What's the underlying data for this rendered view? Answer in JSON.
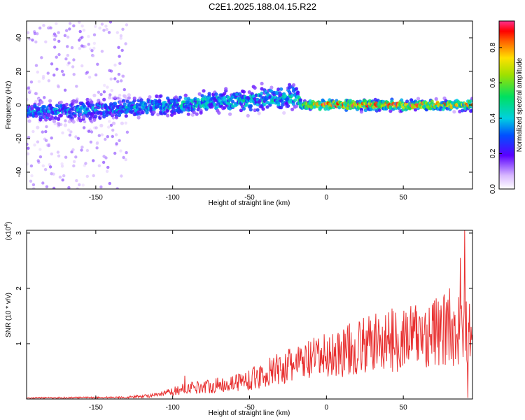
{
  "title": "C2E1.2025.188.04.15.R22",
  "colors": {
    "snr_line": "#e83030",
    "frame": "#000000"
  },
  "chart_data": [
    {
      "type": "heatmap",
      "xlabel": "Height of straight line (km)",
      "ylabel": "Frequency (Hz)",
      "xlim": [
        -195,
        95
      ],
      "ylim": [
        -50,
        50
      ],
      "x_ticks": [
        -150,
        -100,
        -50,
        0,
        50
      ],
      "y_ticks": [
        -40,
        -20,
        0,
        20,
        40
      ],
      "colorbar": {
        "label": "Normalized spectral amplitude",
        "range": [
          0,
          0.95
        ],
        "ticks": [
          0.0,
          0.2,
          0.4,
          0.6,
          0.8
        ],
        "colormap": "rainbow"
      },
      "ridge": [
        {
          "x": -190,
          "center_hz": -4,
          "spread_hz": 4,
          "amplitude": 0.3
        },
        {
          "x": -150,
          "center_hz": -3,
          "spread_hz": 4,
          "amplitude": 0.3
        },
        {
          "x": -100,
          "center_hz": 0,
          "spread_hz": 4,
          "amplitude": 0.35
        },
        {
          "x": -50,
          "center_hz": 3,
          "spread_hz": 5,
          "amplitude": 0.35
        },
        {
          "x": -20,
          "center_hz": 5,
          "spread_hz": 5,
          "amplitude": 0.35
        },
        {
          "x": -15,
          "center_hz": 0,
          "spread_hz": 2,
          "amplitude": 0.5
        },
        {
          "x": 0,
          "center_hz": 0,
          "spread_hz": 2,
          "amplitude": 0.7
        },
        {
          "x": 50,
          "center_hz": 0,
          "spread_hz": 2,
          "amplitude": 0.7
        },
        {
          "x": 92,
          "center_hz": 0,
          "spread_hz": 2,
          "amplitude": 0.6
        }
      ],
      "noise_region": {
        "x": [
          -195,
          -130
        ],
        "amplitude": 0.15
      }
    },
    {
      "type": "line",
      "xlabel": "Height of straight line (km)",
      "ylabel": "SNR (10 * v/v)",
      "y_scale_label": "(x10",
      "y_scale_exponent": "4",
      "xlim": [
        -195,
        95
      ],
      "ylim": [
        0,
        3.05
      ],
      "x_ticks": [
        -150,
        -100,
        -50,
        0,
        50
      ],
      "y_ticks": [
        1,
        2,
        3
      ],
      "trend": [
        {
          "x": -195,
          "y": 0.02
        },
        {
          "x": -130,
          "y": 0.03
        },
        {
          "x": -110,
          "y": 0.07
        },
        {
          "x": -90,
          "y": 0.2
        },
        {
          "x": -70,
          "y": 0.25
        },
        {
          "x": -50,
          "y": 0.35
        },
        {
          "x": -30,
          "y": 0.55
        },
        {
          "x": -10,
          "y": 0.7
        },
        {
          "x": 10,
          "y": 0.85
        },
        {
          "x": 30,
          "y": 1.0
        },
        {
          "x": 50,
          "y": 1.1
        },
        {
          "x": 70,
          "y": 1.2
        },
        {
          "x": 85,
          "y": 1.25
        },
        {
          "x": 95,
          "y": 1.2
        }
      ],
      "peaks": [
        {
          "x": -92,
          "y": 0.42
        },
        {
          "x": 80,
          "y": 2.0
        },
        {
          "x": 87,
          "y": 2.55
        },
        {
          "x": 90,
          "y": 3.05
        },
        {
          "x": 92,
          "y": 0.02
        }
      ]
    }
  ]
}
